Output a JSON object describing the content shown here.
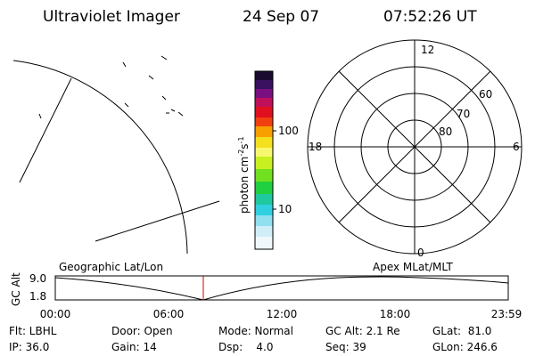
{
  "header": {
    "instrument": "Ultraviolet Imager",
    "date": "24 Sep 07",
    "time": "07:52:26 UT"
  },
  "colorbar": {
    "unit": "photon cm",
    "exp1": "-2",
    "unit2": "s",
    "exp2": "-1",
    "ticks": [
      "100",
      "10"
    ]
  },
  "polar": {
    "mlt": [
      "12",
      "6",
      "0",
      "18"
    ],
    "mlat": [
      "60",
      "70",
      "80"
    ]
  },
  "timeline": {
    "ylabel": "GC Alt",
    "yticks": [
      "9.0",
      "1.8"
    ],
    "left_label": "Geographic Lat/Lon",
    "right_label": "Apex MLat/MLT",
    "xticks": [
      "00:00",
      "06:00",
      "12:00",
      "18:00",
      "23:59"
    ]
  },
  "footer": {
    "rows": [
      [
        "Flt: LBHL",
        "Door: Open",
        "Mode: Normal",
        "GC Alt: 2.1 Re",
        "GLat:  81.0"
      ],
      [
        "IP: 36.0",
        "Gain: 14",
        "Dsp:    4.0",
        "Seq: 39",
        "GLon: 246.6"
      ]
    ]
  }
}
